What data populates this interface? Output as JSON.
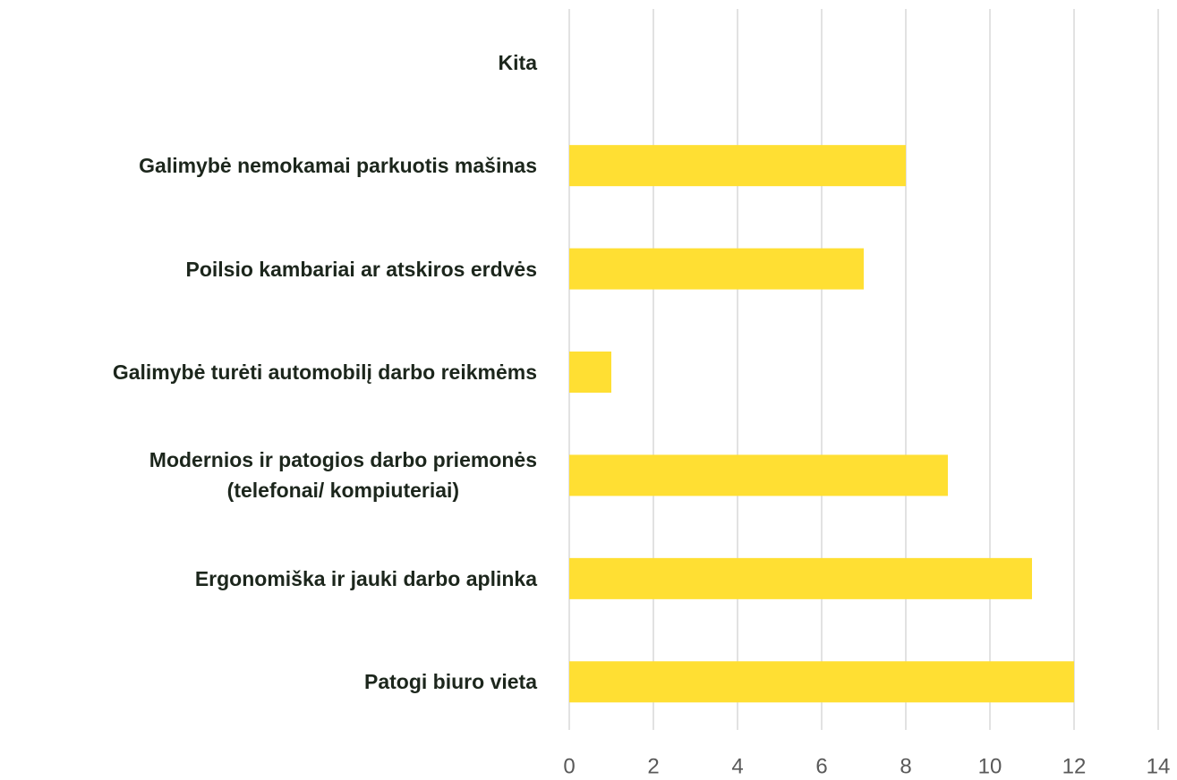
{
  "chart_data": {
    "type": "barh",
    "categories": [
      "Kita",
      "Galimybė nemokamai parkuotis mašinas",
      "Poilsio kambariai ar atskiros erdvės",
      "Galimybė turėti automobilį darbo reikmėms",
      "Modernios ir patogios darbo priemonės\n(telefonai/ kompiuteriai)",
      "Ergonomiška ir jauki darbo aplinka",
      "Patogi biuro vieta"
    ],
    "values": [
      0,
      8,
      7,
      1,
      9,
      11,
      12
    ],
    "color": "#ffdf33",
    "xlim": [
      0,
      14
    ],
    "xticks": [
      0,
      2,
      4,
      6,
      8,
      10,
      12,
      14
    ],
    "grid": true
  }
}
